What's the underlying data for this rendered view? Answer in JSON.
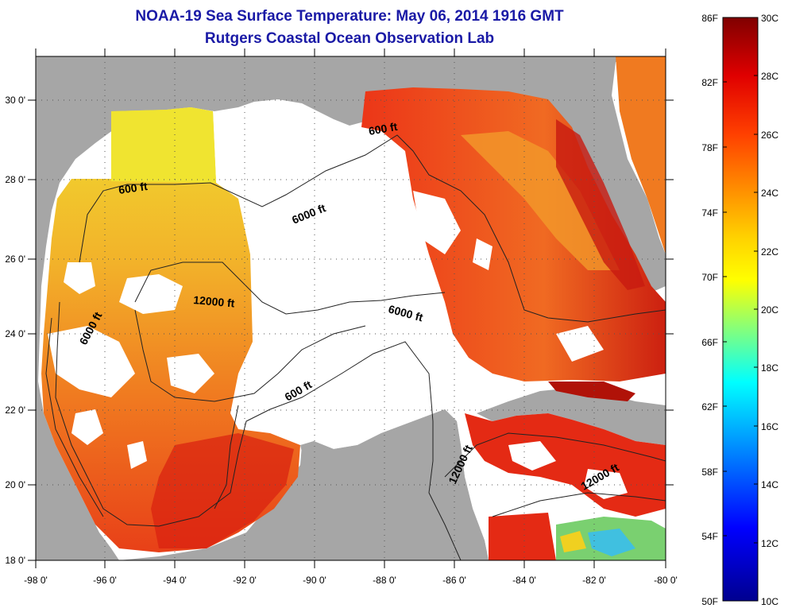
{
  "header": {
    "title_line1": "NOAA-19 Sea Surface Temperature:  May 06, 2014 1916 GMT",
    "title_line2": "Rutgers Coastal Ocean Observation Lab"
  },
  "axes": {
    "lon_labels": [
      "-98 0'",
      "-96 0'",
      "-94 0'",
      "-92 0'",
      "-90 0'",
      "-88 0'",
      "-86 0'",
      "-84 0'",
      "-82 0'",
      "-80 0'"
    ],
    "lat_labels": [
      "30 0'",
      "28 0'",
      "26 0'",
      "24 0'",
      "22 0'",
      "20 0'",
      "18 0'"
    ]
  },
  "contours": {
    "labels": [
      "600 ft",
      "600 ft",
      "6000 ft",
      "12000 ft",
      "6000 ft",
      "6000 ft",
      "600 ft",
      "12000 ft",
      "12000 ft"
    ]
  },
  "colorbar": {
    "fahrenheit": [
      "86F",
      "82F",
      "78F",
      "74F",
      "70F",
      "66F",
      "62F",
      "58F",
      "54F",
      "50F"
    ],
    "celsius": [
      "30C",
      "28C",
      "26C",
      "24C",
      "22C",
      "20C",
      "18C",
      "16C",
      "14C",
      "12C",
      "10C"
    ]
  },
  "colors": {
    "land": "#a6a6a6",
    "no_data": "#ffffff",
    "title": "#1a1aa6"
  }
}
